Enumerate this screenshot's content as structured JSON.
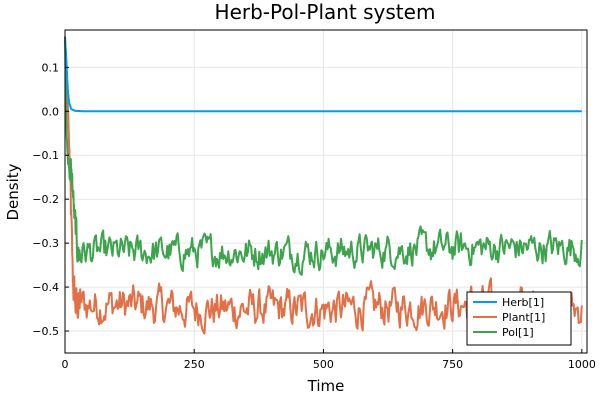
{
  "chart_data": {
    "type": "line",
    "title": "Herb-Pol-Plant system",
    "xlabel": "Time",
    "ylabel": "Density",
    "xlim": [
      0,
      1010
    ],
    "ylim": [
      -0.55,
      0.185
    ],
    "xticks": [
      0,
      250,
      500,
      750,
      1000
    ],
    "yticks": [
      0.1,
      0.0,
      -0.1,
      -0.2,
      -0.3,
      -0.4,
      -0.5
    ],
    "xtick_labels": [
      "0",
      "250",
      "500",
      "750",
      "1000"
    ],
    "ytick_labels": [
      "0.1",
      "0.0",
      "−0.1",
      "−0.2",
      "−0.3",
      "−0.4",
      "−0.5"
    ],
    "grid": true,
    "legend_position": "bottom-right",
    "series": [
      {
        "name": "Herb[1]",
        "color": "#009af9",
        "points": [
          [
            0,
            0.16
          ],
          [
            2,
            0.13
          ],
          [
            4,
            0.08
          ],
          [
            6,
            0.04
          ],
          [
            8,
            0.02
          ],
          [
            12,
            0.005
          ],
          [
            20,
            0.001
          ],
          [
            40,
            0.0
          ],
          [
            1000,
            0.0
          ]
        ]
      },
      {
        "name": "Plant[1]",
        "color": "#e26f46",
        "points": [
          [
            0,
            0.17
          ],
          [
            3,
            0.1
          ],
          [
            6,
            0.0
          ],
          [
            9,
            -0.12
          ],
          [
            12,
            -0.25
          ],
          [
            15,
            -0.38
          ],
          [
            20,
            -0.44
          ],
          [
            100,
            -0.44
          ],
          [
            250,
            -0.45
          ],
          [
            500,
            -0.45
          ],
          [
            750,
            -0.44
          ],
          [
            1000,
            -0.45
          ]
        ]
      },
      {
        "name": "Pol[1]",
        "color": "#3da44d",
        "points": [
          [
            0,
            0.17
          ],
          [
            3,
            -0.05
          ],
          [
            6,
            -0.12
          ],
          [
            10,
            -0.13
          ],
          [
            14,
            -0.16
          ],
          [
            18,
            -0.24
          ],
          [
            25,
            -0.32
          ],
          [
            100,
            -0.32
          ],
          [
            250,
            -0.32
          ],
          [
            500,
            -0.32
          ],
          [
            750,
            -0.31
          ],
          [
            1000,
            -0.31
          ]
        ]
      }
    ]
  }
}
